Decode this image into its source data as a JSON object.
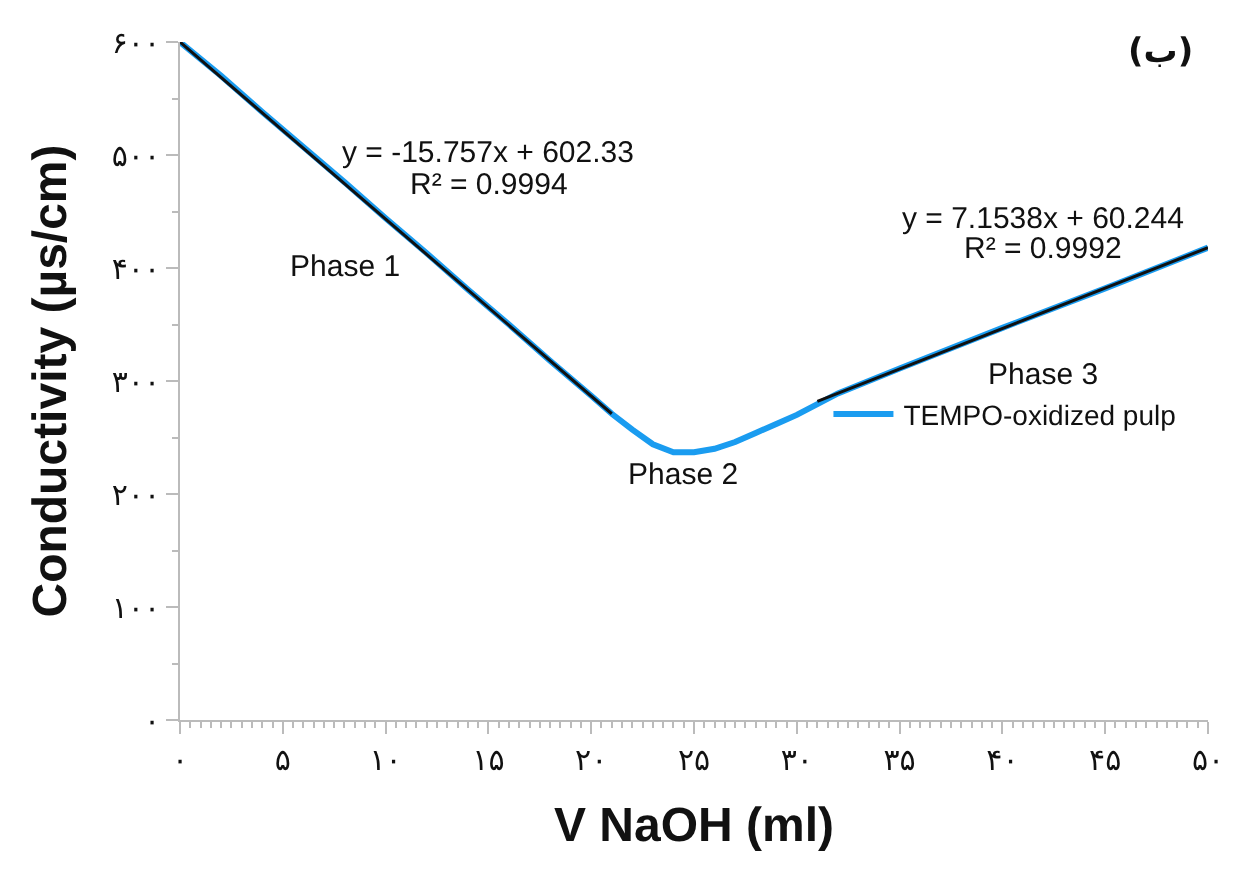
{
  "chart_data": {
    "type": "line",
    "xlabel": "V NaOH (ml)",
    "ylabel": "Conductivity (µs/cm)",
    "series": [
      {
        "name": "TEMPO-oxidized pulp",
        "color": "#1a9cf0",
        "x": [
          0,
          2,
          4,
          6,
          8,
          10,
          12,
          14,
          16,
          18,
          20,
          21,
          22,
          23,
          24,
          25,
          26,
          27,
          28,
          29,
          30,
          32,
          35,
          40,
          45,
          50
        ],
        "values": [
          600,
          570,
          538,
          507,
          476,
          444,
          413,
          381,
          350,
          318,
          287,
          271,
          257,
          244,
          237,
          237,
          240,
          246,
          254,
          262,
          270,
          289,
          311,
          347,
          382,
          418
        ]
      },
      {
        "color": "#111111",
        "x": [
          0,
          21
        ],
        "values": [
          600,
          271
        ]
      },
      {
        "color": "#111111",
        "x": [
          31,
          50
        ],
        "values": [
          282,
          418
        ]
      }
    ],
    "xlim": [
      0,
      50
    ],
    "xticks": [
      {
        "value": 0,
        "label": "۰"
      },
      {
        "value": 5,
        "label": "۵"
      },
      {
        "value": 10,
        "label": "۱۰"
      },
      {
        "value": 15,
        "label": "۱۵"
      },
      {
        "value": 20,
        "label": "۲۰"
      },
      {
        "value": 25,
        "label": "۲۵"
      },
      {
        "value": 30,
        "label": "۳۰"
      },
      {
        "value": 35,
        "label": "۳۵"
      },
      {
        "value": 40,
        "label": "۴۰"
      },
      {
        "value": 45,
        "label": "۴۵"
      },
      {
        "value": 50,
        "label": "۵۰"
      }
    ],
    "ylim": [
      0,
      600
    ],
    "yticks": [
      {
        "value": 0,
        "label": "۰"
      },
      {
        "value": 100,
        "label": "۱۰۰"
      },
      {
        "value": 200,
        "label": "۲۰۰"
      },
      {
        "value": 300,
        "label": "۳۰۰"
      },
      {
        "value": 400,
        "label": "۴۰۰"
      },
      {
        "value": 500,
        "label": "۵۰۰"
      },
      {
        "value": 600,
        "label": "۶۰۰"
      }
    ],
    "annotations": [
      "y = -15.757x + 602.33",
      "R² = 0.9994",
      "Phase 1",
      "Phase 2",
      "y = 7.1538x + 60.244",
      "R² = 0.9992",
      "Phase 3",
      "(ب)"
    ],
    "legend": "right",
    "marker": "none",
    "line_style": "solid"
  }
}
